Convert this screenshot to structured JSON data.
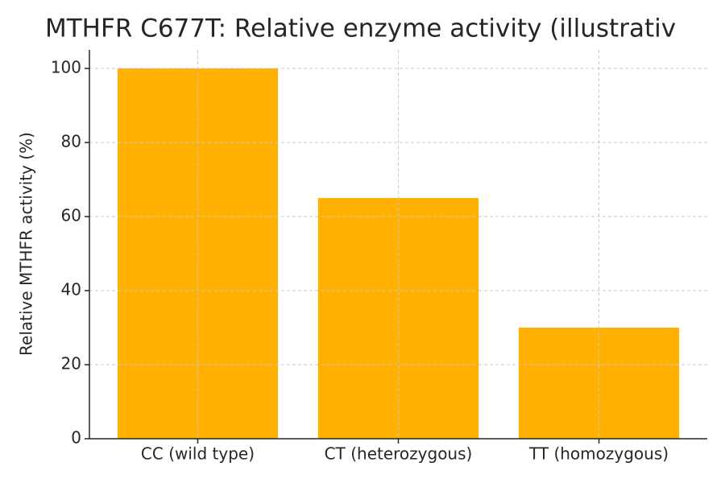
{
  "chart_data": {
    "type": "bar",
    "title": "MTHFR C677T: Relative enzyme activity (illustrativ",
    "y_label": "Relative MTHFR activity (%)",
    "categories": [
      "CC (wild type)",
      "CT (heterozygous)",
      "TT (homozygous)"
    ],
    "values": [
      100,
      65,
      30
    ],
    "color": "#ffb000",
    "ylim": [
      0,
      105
    ],
    "yticks": [
      0,
      20,
      40,
      60,
      80,
      100
    ],
    "grid": true
  }
}
